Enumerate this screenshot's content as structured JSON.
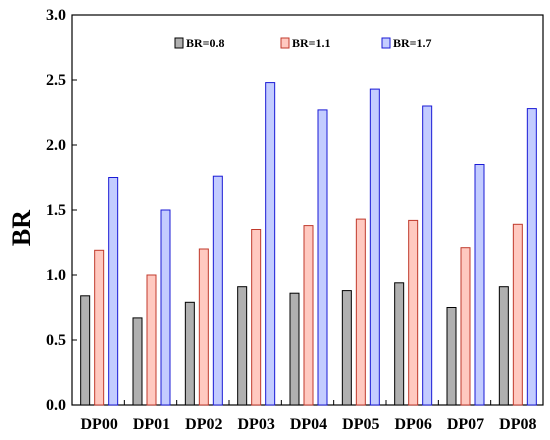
{
  "chart_data": {
    "type": "bar",
    "title": "",
    "xlabel": "",
    "ylabel": "BR",
    "ylim": [
      0,
      3.0
    ],
    "yticks": [
      "0.0",
      "0.5",
      "1.0",
      "1.5",
      "2.0",
      "2.5",
      "3.0"
    ],
    "categories": [
      "DP00",
      "DP01",
      "DP02",
      "DP03",
      "DP04",
      "DP05",
      "DP06",
      "DP07",
      "DP08"
    ],
    "series": [
      {
        "name": "BR=0.8",
        "fill": "#b0b0b0",
        "stroke": "#000000",
        "values": [
          0.84,
          0.67,
          0.79,
          0.91,
          0.86,
          0.88,
          0.94,
          0.75,
          0.91
        ]
      },
      {
        "name": "BR=1.1",
        "fill": "#ffc9c0",
        "stroke": "#c0392b",
        "values": [
          1.19,
          1.0,
          1.2,
          1.35,
          1.38,
          1.43,
          1.42,
          1.21,
          1.39
        ]
      },
      {
        "name": "BR=1.7",
        "fill": "#c3ccff",
        "stroke": "#1a1ad6",
        "values": [
          1.75,
          1.5,
          1.76,
          2.48,
          2.27,
          2.43,
          2.3,
          1.85,
          2.28
        ]
      }
    ],
    "legend_position": "top",
    "grid": false
  }
}
